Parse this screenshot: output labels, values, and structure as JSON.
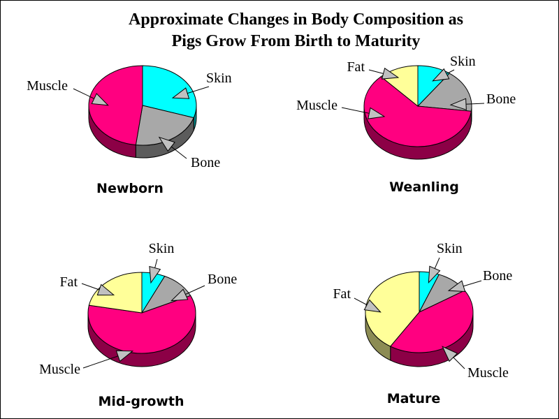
{
  "title": {
    "line1": "Approximate Changes in Body Composition as",
    "line2": "Pigs Grow From Birth to Maturity"
  },
  "colors": {
    "Skin": "#00FFFF",
    "Bone": "#A8A8A8",
    "Muscle": "#FF0080",
    "Fat": "#FFFF99"
  },
  "chart_data": [
    {
      "type": "pie",
      "title": "Newborn",
      "slices": [
        {
          "label": "Skin",
          "value": 30
        },
        {
          "label": "Bone",
          "value": 22
        },
        {
          "label": "Muscle",
          "value": 48
        }
      ]
    },
    {
      "type": "pie",
      "title": "Weanling",
      "slices": [
        {
          "label": "Skin",
          "value": 10
        },
        {
          "label": "Bone",
          "value": 17
        },
        {
          "label": "Muscle",
          "value": 61
        },
        {
          "label": "Fat",
          "value": 12
        }
      ]
    },
    {
      "type": "pie",
      "title": "Mid-growth",
      "slices": [
        {
          "label": "Skin",
          "value": 7
        },
        {
          "label": "Bone",
          "value": 11
        },
        {
          "label": "Muscle",
          "value": 60
        },
        {
          "label": "Fat",
          "value": 22
        }
      ]
    },
    {
      "type": "pie",
      "title": "Mature",
      "slices": [
        {
          "label": "Skin",
          "value": 6
        },
        {
          "label": "Bone",
          "value": 10
        },
        {
          "label": "Muscle",
          "value": 43
        },
        {
          "label": "Fat",
          "value": 41
        }
      ]
    }
  ]
}
